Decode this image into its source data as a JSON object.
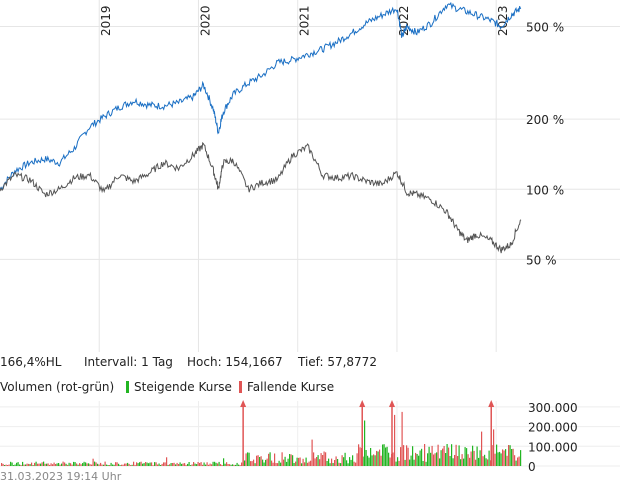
{
  "chart_data": [
    {
      "type": "line",
      "title": "",
      "x_ticks": [
        "2019",
        "2020",
        "2021",
        "2022",
        "2023"
      ],
      "y_scale": "log",
      "y_ticks": [
        "500 %",
        "200 %",
        "100 %",
        "50 %"
      ],
      "y_tick_values": [
        500,
        200,
        100,
        50
      ],
      "ylim": [
        20,
        650
      ],
      "grid": true,
      "series": [
        {
          "color": "#1a6fc4",
          "x": [
            2018.0,
            2018.15,
            2018.3,
            2018.45,
            2018.6,
            2018.75,
            2018.9,
            2019.05,
            2019.2,
            2019.35,
            2019.5,
            2019.65,
            2019.8,
            2019.95,
            2020.05,
            2020.15,
            2020.2,
            2020.25,
            2020.35,
            2020.5,
            2020.65,
            2020.8,
            2020.95,
            2021.1,
            2021.25,
            2021.4,
            2021.55,
            2021.7,
            2021.85,
            2022.0,
            2022.05,
            2022.1,
            2022.2,
            2022.35,
            2022.5,
            2022.65,
            2022.8,
            2022.95,
            2023.05,
            2023.15,
            2023.25
          ],
          "values": [
            100,
            120,
            130,
            135,
            130,
            150,
            185,
            205,
            225,
            240,
            230,
            228,
            235,
            250,
            280,
            220,
            175,
            215,
            255,
            285,
            310,
            350,
            360,
            380,
            400,
            430,
            470,
            520,
            560,
            600,
            450,
            500,
            470,
            520,
            620,
            590,
            560,
            530,
            500,
            560,
            600
          ]
        },
        {
          "color": "#555555",
          "x": [
            2018.0,
            2018.15,
            2018.3,
            2018.45,
            2018.6,
            2018.75,
            2018.9,
            2019.05,
            2019.2,
            2019.35,
            2019.5,
            2019.65,
            2019.8,
            2019.95,
            2020.05,
            2020.15,
            2020.2,
            2020.25,
            2020.35,
            2020.5,
            2020.65,
            2020.8,
            2020.95,
            2021.1,
            2021.25,
            2021.4,
            2021.55,
            2021.7,
            2021.85,
            2022.0,
            2022.1,
            2022.2,
            2022.35,
            2022.5,
            2022.6,
            2022.7,
            2022.8,
            2022.95,
            2023.05,
            2023.15,
            2023.25
          ],
          "values": [
            100,
            115,
            110,
            95,
            100,
            112,
            115,
            97,
            115,
            108,
            117,
            130,
            123,
            140,
            155,
            120,
            100,
            130,
            133,
            100,
            107,
            110,
            140,
            152,
            115,
            112,
            114,
            108,
            105,
            118,
            97,
            95,
            90,
            80,
            68,
            60,
            64,
            60,
            55,
            58,
            74
          ]
        }
      ]
    },
    {
      "type": "bar",
      "title": "Volumen (rot-grün)",
      "y_ticks": [
        "300.000",
        "200.000",
        "100.000",
        "0"
      ],
      "y_tick_values": [
        300000,
        200000,
        100000,
        0
      ],
      "ylim": [
        0,
        330000
      ],
      "series": [
        {
          "name": "Steigende Kurse",
          "color": "#22b522"
        },
        {
          "name": "Fallende Kurse",
          "color": "#e05555"
        }
      ],
      "spikes_x": [
        2020.45,
        2021.65,
        2021.95,
        2022.95
      ],
      "spike_color": "#e05555"
    }
  ],
  "info": {
    "summary": "166,4%HL",
    "intervall": "Intervall: 1 Tag",
    "hoch": "Hoch: 154,1667",
    "tief": "Tief: 57,8772"
  },
  "legend": {
    "volumen": "Volumen (rot-grün)",
    "steigende": "Steigende Kurse",
    "fallende": "Fallende Kurse"
  },
  "timestamp": "31.03.2023 19:14 Uhr"
}
